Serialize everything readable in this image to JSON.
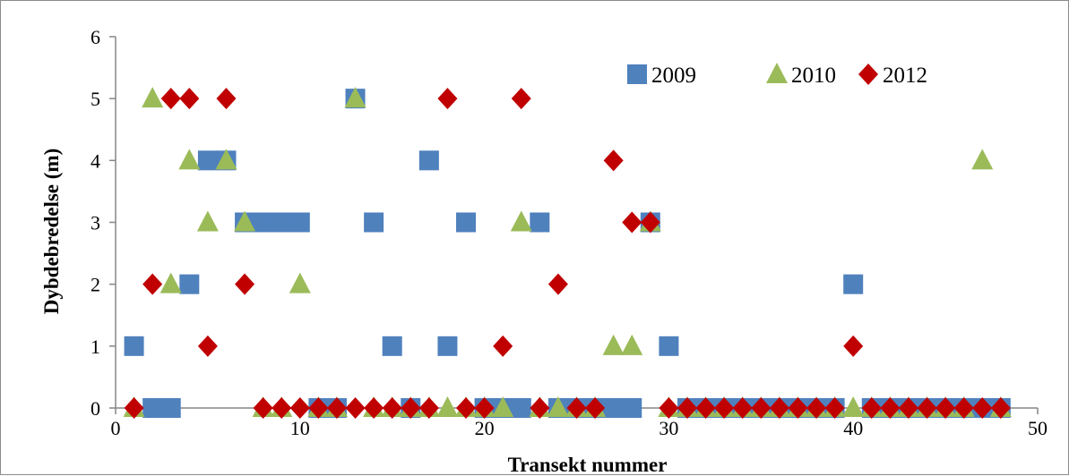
{
  "chart_data": {
    "type": "scatter",
    "title": "",
    "xlabel": "Transekt nummer",
    "ylabel": "Dybdebredelse (m)",
    "xlim": [
      0,
      50
    ],
    "ylim": [
      0,
      6
    ],
    "x_ticks": [
      0,
      10,
      20,
      30,
      40,
      50
    ],
    "y_ticks": [
      0,
      1,
      2,
      3,
      4,
      5,
      6
    ],
    "grid": false,
    "legend_position": "top-right",
    "series": [
      {
        "name": "2009",
        "marker": "square",
        "color": "#4f81bd",
        "points": [
          [
            1,
            1
          ],
          [
            2,
            0
          ],
          [
            3,
            0
          ],
          [
            4,
            2
          ],
          [
            5,
            4
          ],
          [
            6,
            4
          ],
          [
            7,
            3
          ],
          [
            8,
            3
          ],
          [
            9,
            3
          ],
          [
            10,
            3
          ],
          [
            11,
            0
          ],
          [
            12,
            0
          ],
          [
            13,
            5
          ],
          [
            14,
            3
          ],
          [
            15,
            1
          ],
          [
            16,
            0
          ],
          [
            17,
            4
          ],
          [
            18,
            1
          ],
          [
            19,
            3
          ],
          [
            20,
            0
          ],
          [
            21,
            0
          ],
          [
            22,
            0
          ],
          [
            23,
            3
          ],
          [
            24,
            0
          ],
          [
            25,
            0
          ],
          [
            26,
            0
          ],
          [
            27,
            0
          ],
          [
            28,
            0
          ],
          [
            29,
            3
          ],
          [
            30,
            1
          ],
          [
            31,
            0
          ],
          [
            32,
            0
          ],
          [
            33,
            0
          ],
          [
            34,
            0
          ],
          [
            35,
            0
          ],
          [
            36,
            0
          ],
          [
            37,
            0
          ],
          [
            38,
            0
          ],
          [
            39,
            0
          ],
          [
            40,
            2
          ],
          [
            41,
            0
          ],
          [
            42,
            0
          ],
          [
            43,
            0
          ],
          [
            44,
            0
          ],
          [
            45,
            0
          ],
          [
            46,
            0
          ],
          [
            47,
            0
          ],
          [
            48,
            0
          ]
        ]
      },
      {
        "name": "2010",
        "marker": "triangle",
        "color": "#9bbb59",
        "points": [
          [
            1,
            0
          ],
          [
            2,
            5
          ],
          [
            3,
            2
          ],
          [
            4,
            4
          ],
          [
            5,
            3
          ],
          [
            6,
            4
          ],
          [
            7,
            3
          ],
          [
            8,
            0
          ],
          [
            9,
            0
          ],
          [
            10,
            2
          ],
          [
            11,
            0
          ],
          [
            12,
            0
          ],
          [
            13,
            5
          ],
          [
            14,
            0
          ],
          [
            15,
            0
          ],
          [
            16,
            0
          ],
          [
            17,
            0
          ],
          [
            18,
            0
          ],
          [
            19,
            0
          ],
          [
            20,
            0
          ],
          [
            21,
            0
          ],
          [
            22,
            3
          ],
          [
            23,
            0
          ],
          [
            24,
            0
          ],
          [
            25,
            0
          ],
          [
            26,
            0
          ],
          [
            27,
            1
          ],
          [
            28,
            1
          ],
          [
            29,
            3
          ],
          [
            30,
            0
          ],
          [
            31,
            0
          ],
          [
            32,
            0
          ],
          [
            33,
            0
          ],
          [
            34,
            0
          ],
          [
            35,
            0
          ],
          [
            36,
            0
          ],
          [
            37,
            0
          ],
          [
            38,
            0
          ],
          [
            39,
            0
          ],
          [
            40,
            0
          ],
          [
            41,
            0
          ],
          [
            42,
            0
          ],
          [
            43,
            0
          ],
          [
            44,
            0
          ],
          [
            45,
            0
          ],
          [
            46,
            0
          ],
          [
            47,
            4
          ],
          [
            48,
            0
          ]
        ]
      },
      {
        "name": "2012",
        "marker": "diamond",
        "color": "#c00000",
        "points": [
          [
            1,
            0
          ],
          [
            2,
            2
          ],
          [
            3,
            5
          ],
          [
            4,
            5
          ],
          [
            5,
            1
          ],
          [
            6,
            5
          ],
          [
            7,
            2
          ],
          [
            8,
            0
          ],
          [
            9,
            0
          ],
          [
            10,
            0
          ],
          [
            11,
            0
          ],
          [
            12,
            0
          ],
          [
            13,
            0
          ],
          [
            14,
            0
          ],
          [
            15,
            0
          ],
          [
            16,
            0
          ],
          [
            17,
            0
          ],
          [
            18,
            5
          ],
          [
            19,
            0
          ],
          [
            20,
            0
          ],
          [
            21,
            1
          ],
          [
            22,
            5
          ],
          [
            23,
            0
          ],
          [
            24,
            2
          ],
          [
            25,
            0
          ],
          [
            26,
            0
          ],
          [
            27,
            4
          ],
          [
            28,
            3
          ],
          [
            29,
            3
          ],
          [
            30,
            0
          ],
          [
            31,
            0
          ],
          [
            32,
            0
          ],
          [
            33,
            0
          ],
          [
            34,
            0
          ],
          [
            35,
            0
          ],
          [
            36,
            0
          ],
          [
            37,
            0
          ],
          [
            38,
            0
          ],
          [
            39,
            0
          ],
          [
            40,
            1
          ],
          [
            41,
            0
          ],
          [
            42,
            0
          ],
          [
            43,
            0
          ],
          [
            44,
            0
          ],
          [
            45,
            0
          ],
          [
            46,
            0
          ],
          [
            47,
            0
          ],
          [
            48,
            0
          ]
        ]
      }
    ]
  }
}
